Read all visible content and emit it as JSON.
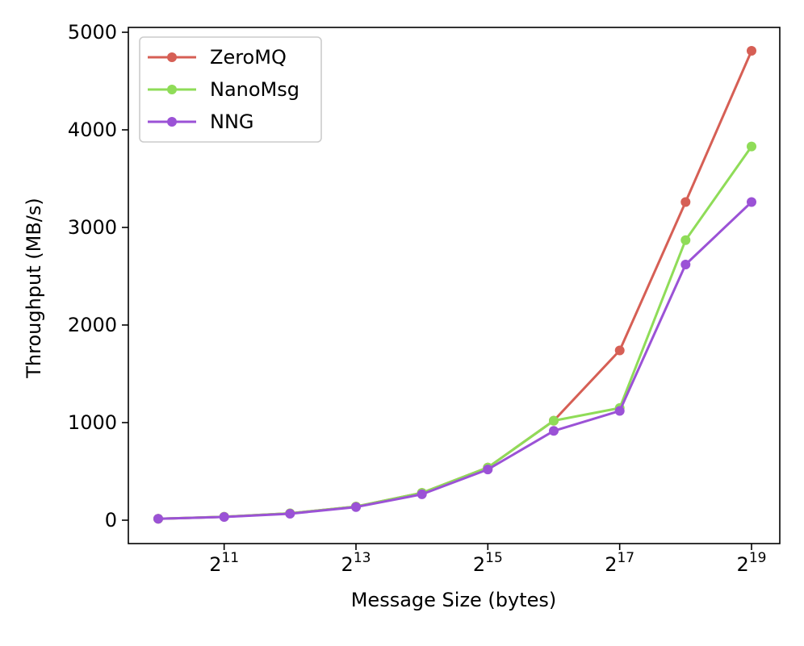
{
  "chart_data": {
    "type": "line",
    "xlabel": "Message Size (bytes)",
    "ylabel": "Throughput (MB/s)",
    "x_scale": "log2",
    "xlim": [
      1024,
      524288
    ],
    "ylim": [
      0,
      5000
    ],
    "x_ticks": [
      {
        "value": 2048,
        "base": "2",
        "exp": "11"
      },
      {
        "value": 8192,
        "base": "2",
        "exp": "13"
      },
      {
        "value": 32768,
        "base": "2",
        "exp": "15"
      },
      {
        "value": 131072,
        "base": "2",
        "exp": "17"
      },
      {
        "value": 524288,
        "base": "2",
        "exp": "19"
      }
    ],
    "y_ticks": [
      0,
      1000,
      2000,
      3000,
      4000,
      5000
    ],
    "x": [
      1024,
      2048,
      4096,
      8192,
      16384,
      32768,
      65536,
      131072,
      262144,
      524288
    ],
    "legend_position": "top-left",
    "grid": false,
    "series": [
      {
        "name": "ZeroMQ",
        "color": "#d65f55",
        "values": [
          15,
          35,
          70,
          140,
          280,
          540,
          1020,
          1740,
          3260,
          4810
        ]
      },
      {
        "name": "NanoMsg",
        "color": "#8fdc58",
        "values": [
          15,
          35,
          70,
          140,
          280,
          540,
          1020,
          1150,
          2870,
          3830
        ]
      },
      {
        "name": "NNG",
        "color": "#9b52d6",
        "values": [
          15,
          33,
          66,
          135,
          265,
          520,
          915,
          1120,
          2620,
          3260
        ]
      }
    ]
  }
}
